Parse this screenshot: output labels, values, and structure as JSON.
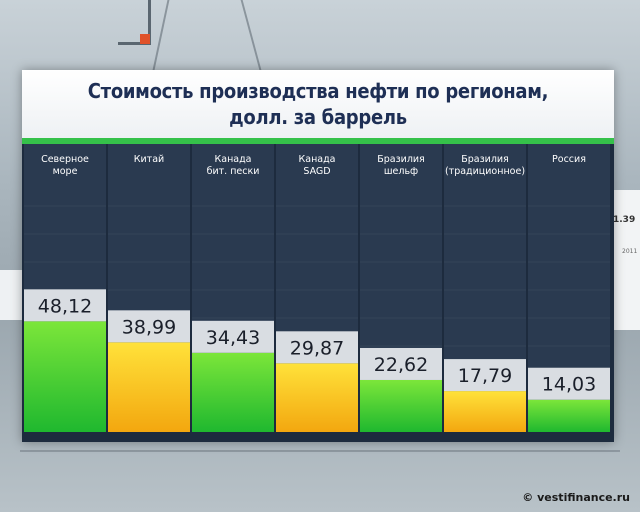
{
  "background": {
    "side_value": "1.39",
    "side_year": "2011"
  },
  "chart_data": {
    "type": "bar",
    "title": "Стоимость производства нефти по регионам,",
    "subtitle": "долл. за баррель",
    "categories": [
      [
        "Северное",
        "море"
      ],
      [
        "Китай"
      ],
      [
        "Канада",
        "бит. пески"
      ],
      [
        "Канада",
        "SAGD"
      ],
      [
        "Бразилия",
        "шельф"
      ],
      [
        "Бразилия",
        "(традиционное)"
      ],
      [
        "Россия"
      ]
    ],
    "values": [
      48.12,
      38.99,
      34.43,
      29.87,
      22.62,
      17.79,
      14.03
    ],
    "value_labels": [
      "48,12",
      "38,99",
      "34,43",
      "29,87",
      "22,62",
      "17,79",
      "14,03"
    ],
    "bar_colors": [
      "green",
      "yellow",
      "green",
      "yellow",
      "green",
      "yellow",
      "green"
    ],
    "ylim": [
      0,
      60
    ],
    "colors": {
      "green_top": "#7ce63a",
      "green_bottom": "#1fb82f",
      "yellow_top": "#ffe23a",
      "yellow_bottom": "#f3a70f",
      "column_bg": "#2a3a50",
      "label_box": "#d9dde2",
      "accent": "#35c14a"
    }
  },
  "watermark": "© vestifinance.ru"
}
